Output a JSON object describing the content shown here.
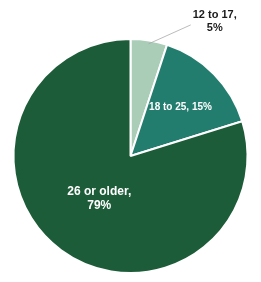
{
  "chart_data": {
    "type": "pie",
    "categories": [
      "12 to 17,\n5%",
      "18 to 25, 15%",
      "26 or older,\n79%"
    ],
    "values": [
      5,
      15,
      79
    ],
    "colors": [
      "#aacdb8",
      "#237d6e",
      "#1d5c38"
    ],
    "data_labels": true
  }
}
